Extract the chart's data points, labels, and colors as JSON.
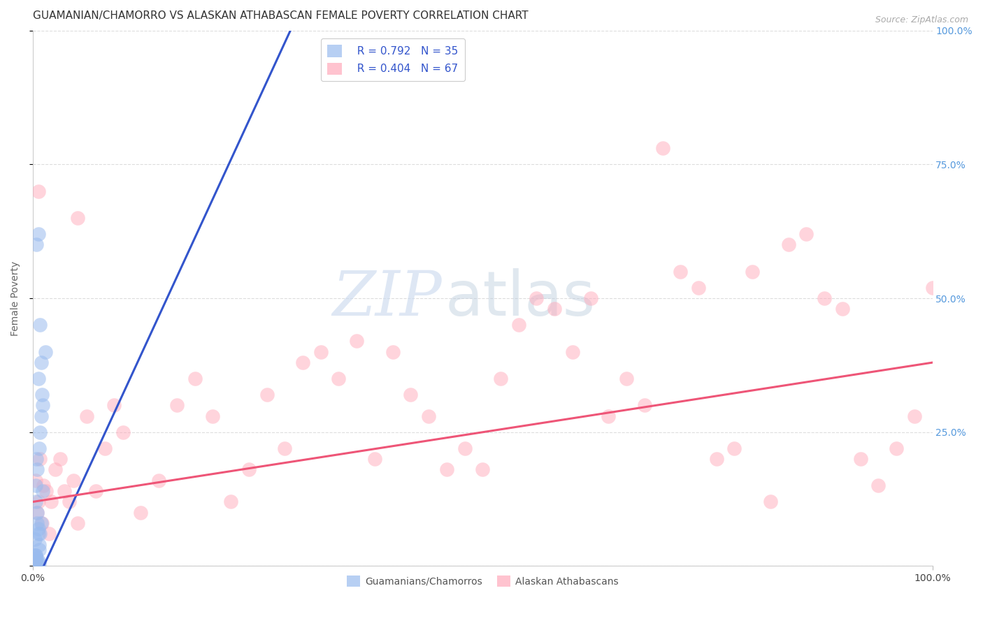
{
  "title": "GUAMANIAN/CHAMORRO VS ALASKAN ATHABASCAN FEMALE POVERTY CORRELATION CHART",
  "source": "Source: ZipAtlas.com",
  "ylabel": "Female Poverty",
  "xlim": [
    0,
    1
  ],
  "ylim": [
    0,
    1
  ],
  "background_color": "#ffffff",
  "watermark_zip": "ZIP",
  "watermark_atlas": "atlas",
  "legend_r1": "R = 0.792",
  "legend_n1": "N = 35",
  "legend_r2": "R = 0.404",
  "legend_n2": "N = 67",
  "blue_color": "#99bbee",
  "pink_color": "#ffaabb",
  "blue_line_color": "#3355cc",
  "pink_line_color": "#ee5577",
  "blue_scatter": [
    [
      0.003,
      0.02
    ],
    [
      0.004,
      0.015
    ],
    [
      0.002,
      0.01
    ],
    [
      0.006,
      0.01
    ],
    [
      0.005,
      0.005
    ],
    [
      0.007,
      0.005
    ],
    [
      0.003,
      0.005
    ],
    [
      0.005,
      0.18
    ],
    [
      0.007,
      0.22
    ],
    [
      0.009,
      0.28
    ],
    [
      0.008,
      0.25
    ],
    [
      0.01,
      0.32
    ],
    [
      0.006,
      0.35
    ],
    [
      0.009,
      0.38
    ],
    [
      0.011,
      0.3
    ],
    [
      0.003,
      0.12
    ],
    [
      0.005,
      0.08
    ],
    [
      0.002,
      0.05
    ],
    [
      0.006,
      0.06
    ],
    [
      0.007,
      0.03
    ],
    [
      0.004,
      0.2
    ],
    [
      0.003,
      0.15
    ],
    [
      0.005,
      0.1
    ],
    [
      0.006,
      0.07
    ],
    [
      0.007,
      0.04
    ],
    [
      0.009,
      0.08
    ],
    [
      0.011,
      0.14
    ],
    [
      0.014,
      0.4
    ],
    [
      0.001,
      0.02
    ],
    [
      0.002,
      0.0
    ],
    [
      0.003,
      0.02
    ],
    [
      0.008,
      0.06
    ],
    [
      0.004,
      0.6
    ],
    [
      0.006,
      0.62
    ],
    [
      0.008,
      0.45
    ]
  ],
  "pink_scatter": [
    [
      0.003,
      0.16
    ],
    [
      0.005,
      0.1
    ],
    [
      0.006,
      0.12
    ],
    [
      0.008,
      0.2
    ],
    [
      0.01,
      0.08
    ],
    [
      0.012,
      0.15
    ],
    [
      0.015,
      0.14
    ],
    [
      0.018,
      0.06
    ],
    [
      0.02,
      0.12
    ],
    [
      0.025,
      0.18
    ],
    [
      0.03,
      0.2
    ],
    [
      0.035,
      0.14
    ],
    [
      0.04,
      0.12
    ],
    [
      0.045,
      0.16
    ],
    [
      0.05,
      0.08
    ],
    [
      0.06,
      0.28
    ],
    [
      0.07,
      0.14
    ],
    [
      0.08,
      0.22
    ],
    [
      0.09,
      0.3
    ],
    [
      0.1,
      0.25
    ],
    [
      0.12,
      0.1
    ],
    [
      0.14,
      0.16
    ],
    [
      0.16,
      0.3
    ],
    [
      0.18,
      0.35
    ],
    [
      0.2,
      0.28
    ],
    [
      0.22,
      0.12
    ],
    [
      0.24,
      0.18
    ],
    [
      0.26,
      0.32
    ],
    [
      0.28,
      0.22
    ],
    [
      0.3,
      0.38
    ],
    [
      0.32,
      0.4
    ],
    [
      0.34,
      0.35
    ],
    [
      0.36,
      0.42
    ],
    [
      0.38,
      0.2
    ],
    [
      0.4,
      0.4
    ],
    [
      0.42,
      0.32
    ],
    [
      0.44,
      0.28
    ],
    [
      0.46,
      0.18
    ],
    [
      0.48,
      0.22
    ],
    [
      0.5,
      0.18
    ],
    [
      0.52,
      0.35
    ],
    [
      0.54,
      0.45
    ],
    [
      0.56,
      0.5
    ],
    [
      0.58,
      0.48
    ],
    [
      0.6,
      0.4
    ],
    [
      0.62,
      0.5
    ],
    [
      0.64,
      0.28
    ],
    [
      0.66,
      0.35
    ],
    [
      0.68,
      0.3
    ],
    [
      0.7,
      0.78
    ],
    [
      0.72,
      0.55
    ],
    [
      0.74,
      0.52
    ],
    [
      0.76,
      0.2
    ],
    [
      0.78,
      0.22
    ],
    [
      0.8,
      0.55
    ],
    [
      0.82,
      0.12
    ],
    [
      0.84,
      0.6
    ],
    [
      0.86,
      0.62
    ],
    [
      0.88,
      0.5
    ],
    [
      0.9,
      0.48
    ],
    [
      0.92,
      0.2
    ],
    [
      0.94,
      0.15
    ],
    [
      0.96,
      0.22
    ],
    [
      0.98,
      0.28
    ],
    [
      1.0,
      0.52
    ],
    [
      0.006,
      0.7
    ],
    [
      0.05,
      0.65
    ]
  ],
  "blue_line_x": [
    -0.01,
    0.3
  ],
  "blue_line_y": [
    -0.08,
    1.05
  ],
  "pink_line_x": [
    0.0,
    1.0
  ],
  "pink_line_y": [
    0.12,
    0.38
  ],
  "grid_color": "#dddddd",
  "title_fontsize": 11,
  "axis_label_fontsize": 10,
  "tick_fontsize": 10,
  "right_tick_color": "#5599dd"
}
